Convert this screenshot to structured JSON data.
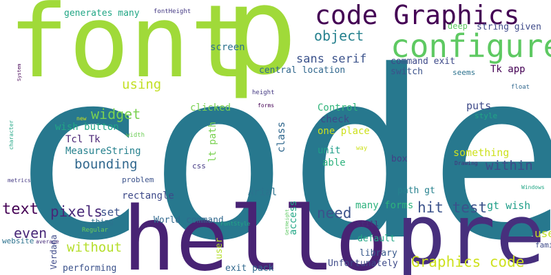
{
  "words": [
    {
      "text": "code",
      "color": "#27788e",
      "rotated": false
    },
    {
      "text": "font",
      "color": "#a0da39",
      "rotated": false
    },
    {
      "text": "p",
      "color": "#a0da39",
      "rotated": false
    },
    {
      "text": "hello",
      "color": "#482374",
      "rotated": false
    },
    {
      "text": "pre",
      "color": "#472f7d",
      "rotated": false
    },
    {
      "text": "code Graphics",
      "color": "#440154",
      "rotated": false
    },
    {
      "text": "configure",
      "color": "#5ec962",
      "rotated": false
    },
    {
      "text": "object",
      "color": "#26818e",
      "rotated": false
    },
    {
      "text": "sans serif",
      "color": "#3b528b",
      "rotated": false
    },
    {
      "text": "central location",
      "color": "#31688e",
      "rotated": false
    },
    {
      "text": "command exit",
      "color": "#3e4a89",
      "rotated": false
    },
    {
      "text": "switch",
      "color": "#3b528b",
      "rotated": false
    },
    {
      "text": "seems",
      "color": "#2c728e",
      "rotated": false
    },
    {
      "text": "Tk app",
      "color": "#440154",
      "rotated": false
    },
    {
      "text": "float",
      "color": "#31688e",
      "rotated": false
    },
    {
      "text": "using",
      "color": "#c2df23",
      "rotated": false
    },
    {
      "text": "widget",
      "color": "#7ad151",
      "rotated": false
    },
    {
      "text": "clicked",
      "color": "#7ad151",
      "rotated": false
    },
    {
      "text": "Control",
      "color": "#31b57b",
      "rotated": false
    },
    {
      "text": "check",
      "color": "#3e4a89",
      "rotated": false
    },
    {
      "text": "puts",
      "color": "#3e4a89",
      "rotated": false
    },
    {
      "text": "style",
      "color": "#21a685",
      "rotated": false
    },
    {
      "text": "one place",
      "color": "#cde11d",
      "rotated": false
    },
    {
      "text": "wish button",
      "color": "#21a685",
      "rotated": false
    },
    {
      "text": "Tcl Tk",
      "color": "#482374",
      "rotated": false
    },
    {
      "text": "MeasureString",
      "color": "#26818e",
      "rotated": false
    },
    {
      "text": "bounding",
      "color": "#31688e",
      "rotated": false
    },
    {
      "text": "within",
      "color": "#3e4a89",
      "rotated": false
    },
    {
      "text": "unit",
      "color": "#1f9e89",
      "rotated": false
    },
    {
      "text": "able",
      "color": "#2db27d",
      "rotated": false
    },
    {
      "text": "box",
      "color": "#433e85",
      "rotated": false
    },
    {
      "text": "something",
      "color": "#cde11d",
      "rotated": false
    },
    {
      "text": "Drawing",
      "color": "#472d7b",
      "rotated": false
    },
    {
      "text": "css",
      "color": "#443983",
      "rotated": false
    },
    {
      "text": "text",
      "color": "#440154",
      "rotated": false
    },
    {
      "text": "pixels",
      "color": "#482878",
      "rotated": false
    },
    {
      "text": "set",
      "color": "#3b528b",
      "rotated": false
    },
    {
      "text": "need",
      "color": "#3b528b",
      "rotated": false
    },
    {
      "text": "hit test",
      "color": "#3b528b",
      "rotated": false
    },
    {
      "text": "gt wish",
      "color": "#1f9e89",
      "rotated": false
    },
    {
      "text": "many forms",
      "color": "#2db27d",
      "rotated": false
    },
    {
      "text": "path gt",
      "color": "#26818e",
      "rotated": false
    },
    {
      "text": "Arial",
      "color": "#2c728e",
      "rotated": false
    },
    {
      "text": "rectangle",
      "color": "#3e4a89",
      "rotated": false
    },
    {
      "text": "problem",
      "color": "#3b528b",
      "rotated": false
    },
    {
      "text": "even",
      "color": "#482878",
      "rotated": false
    },
    {
      "text": "without",
      "color": "#b5de2b",
      "rotated": false
    },
    {
      "text": "thing",
      "color": "#2c728e",
      "rotated": false
    },
    {
      "text": "World command",
      "color": "#31688e",
      "rotated": false
    },
    {
      "text": "default",
      "color": "#21a685",
      "rotated": false
    },
    {
      "text": "still",
      "color": "#472d7b",
      "rotated": false
    },
    {
      "text": "library",
      "color": "#38598c",
      "rotated": false
    },
    {
      "text": "Graphics code",
      "color": "#cde11d",
      "rotated": false
    },
    {
      "text": "use",
      "color": "#c2df23",
      "rotated": false
    },
    {
      "text": "family",
      "color": "#3e4a89",
      "rotated": false
    },
    {
      "text": "exit pack",
      "color": "#31688e",
      "rotated": false
    },
    {
      "text": "Unfortunately",
      "color": "#3e4a89",
      "rotated": false
    },
    {
      "text": "performing",
      "color": "#3b528b",
      "rotated": false
    },
    {
      "text": "website",
      "color": "#2c728e",
      "rotated": false
    },
    {
      "text": "average",
      "color": "#472d7b",
      "rotated": false
    },
    {
      "text": "Regular",
      "color": "#6ece58",
      "rotated": false
    },
    {
      "text": "generates many",
      "color": "#21a685",
      "rotated": false
    },
    {
      "text": "fontHeight",
      "color": "#443983",
      "rotated": false
    },
    {
      "text": "deep",
      "color": "#5ec962",
      "rotated": false
    },
    {
      "text": "string given",
      "color": "#3e4a89",
      "rotated": false
    },
    {
      "text": "screen",
      "color": "#2c728e",
      "rotated": false
    },
    {
      "text": "height",
      "color": "#443983",
      "rotated": false
    },
    {
      "text": "forms",
      "color": "#440154",
      "rotated": false
    },
    {
      "text": "new",
      "color": "#cde11d",
      "rotated": false
    },
    {
      "text": "width",
      "color": "#6ece58",
      "rotated": false
    },
    {
      "text": "metrics",
      "color": "#443983",
      "rotated": false
    },
    {
      "text": "way",
      "color": "#cde11d",
      "rotated": false
    },
    {
      "text": "Windows",
      "color": "#21a685",
      "rotated": false
    },
    {
      "text": "FontStyle",
      "color": "#21a685",
      "rotated": false
    },
    {
      "text": "System",
      "color": "#440154",
      "rotated": true
    },
    {
      "text": "character",
      "color": "#21a685",
      "rotated": true
    },
    {
      "text": "lt path",
      "color": "#7ad151",
      "rotated": true
    },
    {
      "text": "class",
      "color": "#31688e",
      "rotated": true
    },
    {
      "text": "access",
      "color": "#21a685",
      "rotated": true
    },
    {
      "text": "GetHeight",
      "color": "#5ec962",
      "rotated": true
    },
    {
      "text": "user",
      "color": "#b5de2b",
      "rotated": true
    },
    {
      "text": "Verdana",
      "color": "#3e4a89",
      "rotated": true
    }
  ]
}
